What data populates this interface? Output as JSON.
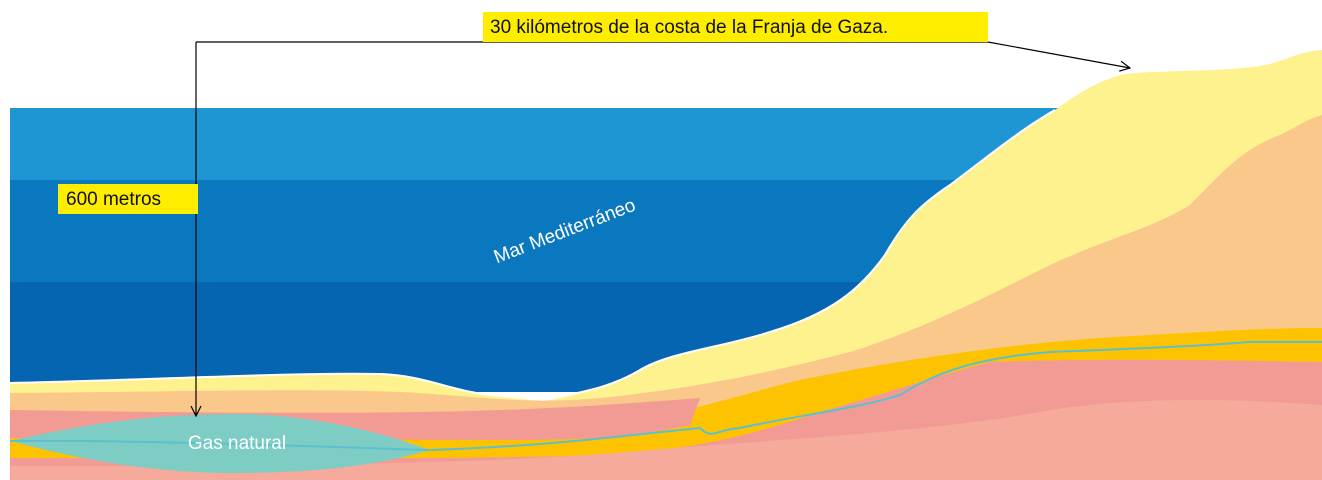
{
  "labels": {
    "distance": "30 kilómetros de la costa de la Franja de Gaza.",
    "depth": "600 metros",
    "sea": "Mar Mediterráneo",
    "gas": "Gas natural"
  }
}
